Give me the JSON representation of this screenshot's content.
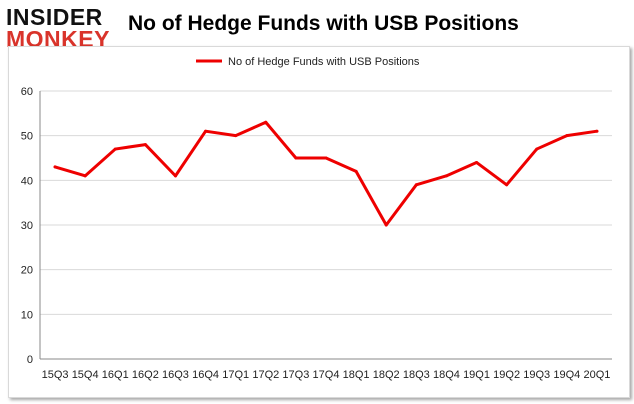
{
  "logo": {
    "top": "INSIDER",
    "bottom": "MONKEY"
  },
  "colors": {
    "line": "#ee0000",
    "grid": "#d9d9d9",
    "axis": "#888888",
    "logo_accent": "#d9342b"
  },
  "chart_data": {
    "type": "line",
    "title": "No of Hedge Funds with USB Positions",
    "legend": {
      "position": "top-center"
    },
    "xlabel": "",
    "ylabel": "",
    "ylim": [
      0,
      60
    ],
    "yticks": [
      0,
      10,
      20,
      30,
      40,
      50,
      60
    ],
    "grid": true,
    "categories": [
      "15Q3",
      "15Q4",
      "16Q1",
      "16Q2",
      "16Q3",
      "16Q4",
      "17Q1",
      "17Q2",
      "17Q3",
      "17Q4",
      "18Q1",
      "18Q2",
      "18Q3",
      "18Q4",
      "19Q1",
      "19Q2",
      "19Q3",
      "19Q4",
      "20Q1"
    ],
    "series": [
      {
        "name": "No of Hedge Funds with USB Positions",
        "values": [
          43,
          41,
          47,
          48,
          41,
          51,
          50,
          53,
          45,
          45,
          42,
          30,
          39,
          41,
          44,
          39,
          47,
          50,
          51
        ]
      }
    ]
  }
}
